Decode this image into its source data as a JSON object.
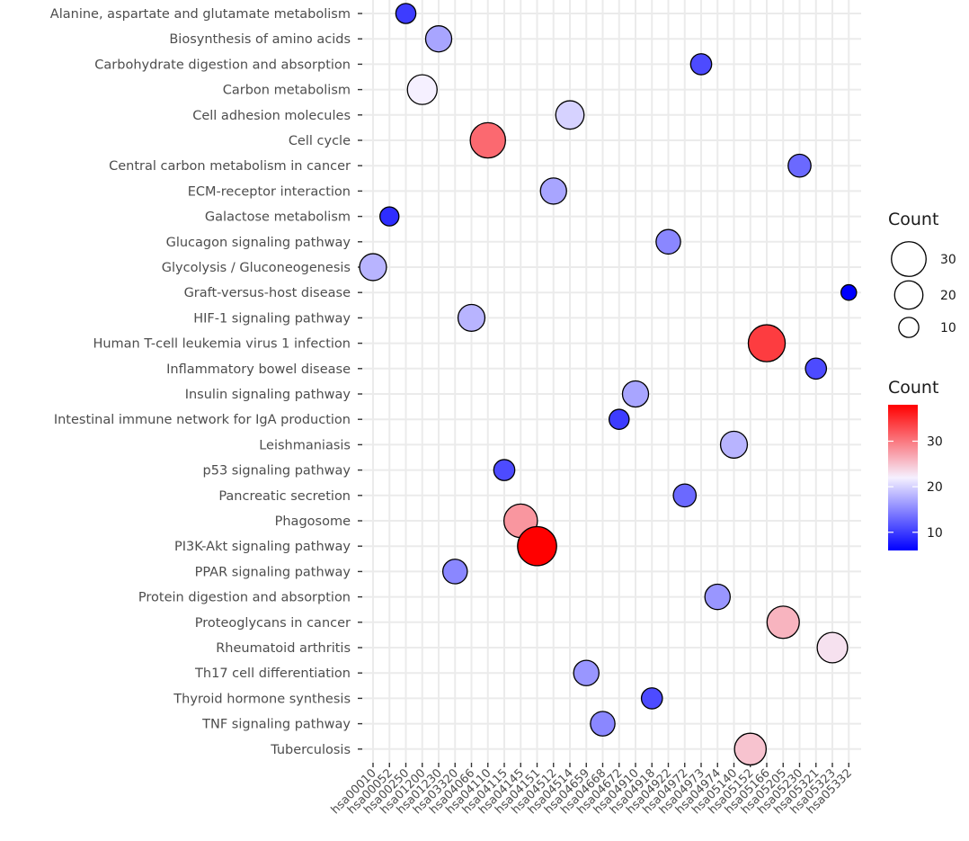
{
  "chart_data": {
    "type": "scatter",
    "description_free": true,
    "y_categories": [
      "Alanine, aspartate and glutamate metabolism",
      "Biosynthesis of amino acids",
      "Carbohydrate digestion and absorption",
      "Carbon metabolism",
      "Cell adhesion molecules",
      "Cell cycle",
      "Central carbon metabolism in cancer",
      "ECM-receptor interaction",
      "Galactose metabolism",
      "Glucagon signaling pathway",
      "Glycolysis / Gluconeogenesis",
      "Graft-versus-host disease",
      "HIF-1 signaling pathway",
      "Human T-cell leukemia virus 1 infection",
      "Inflammatory bowel disease",
      "Insulin signaling pathway",
      "Intestinal immune network for IgA production",
      "Leishmaniasis",
      "p53 signaling pathway",
      "Pancreatic secretion",
      "Phagosome",
      "PI3K-Akt signaling pathway",
      "PPAR signaling pathway",
      "Protein digestion and absorption",
      "Proteoglycans in cancer",
      "Rheumatoid arthritis",
      "Th17 cell differentiation",
      "Thyroid hormone synthesis",
      "TNF signaling pathway",
      "Tuberculosis"
    ],
    "x_categories": [
      "hsa00010",
      "hsa00052",
      "hsa00250",
      "hsa01200",
      "hsa01230",
      "hsa03320",
      "hsa04066",
      "hsa04110",
      "hsa04115",
      "hsa04145",
      "hsa04151",
      "hsa04512",
      "hsa04514",
      "hsa04659",
      "hsa04668",
      "hsa04672",
      "hsa04910",
      "hsa04918",
      "hsa04922",
      "hsa04972",
      "hsa04973",
      "hsa04974",
      "hsa05140",
      "hsa05152",
      "hsa05166",
      "hsa05205",
      "hsa05230",
      "hsa05321",
      "hsa05323",
      "hsa05332"
    ],
    "points": [
      {
        "y": "Alanine, aspartate and glutamate metabolism",
        "x": "hsa00250",
        "count": 10
      },
      {
        "y": "Biosynthesis of amino acids",
        "x": "hsa01230",
        "count": 17
      },
      {
        "y": "Carbohydrate digestion and absorption",
        "x": "hsa04973",
        "count": 11
      },
      {
        "y": "Carbon metabolism",
        "x": "hsa01200",
        "count": 22
      },
      {
        "y": "Cell adhesion molecules",
        "x": "hsa04514",
        "count": 20
      },
      {
        "y": "Cell cycle",
        "x": "hsa04110",
        "count": 31
      },
      {
        "y": "Central carbon metabolism in cancer",
        "x": "hsa05230",
        "count": 13
      },
      {
        "y": "ECM-receptor interaction",
        "x": "hsa04512",
        "count": 17
      },
      {
        "y": "Galactose metabolism",
        "x": "hsa00052",
        "count": 9
      },
      {
        "y": "Glucagon signaling pathway",
        "x": "hsa04922",
        "count": 15
      },
      {
        "y": "Glycolysis / Gluconeogenesis",
        "x": "hsa00010",
        "count": 18
      },
      {
        "y": "Graft-versus-host disease",
        "x": "hsa05332",
        "count": 6
      },
      {
        "y": "HIF-1 signaling pathway",
        "x": "hsa04066",
        "count": 18
      },
      {
        "y": "Human T-cell leukemia virus 1 infection",
        "x": "hsa05166",
        "count": 34
      },
      {
        "y": "Inflammatory bowel disease",
        "x": "hsa05321",
        "count": 11
      },
      {
        "y": "Insulin signaling pathway",
        "x": "hsa04910",
        "count": 17
      },
      {
        "y": "Intestinal immune network for IgA production",
        "x": "hsa04672",
        "count": 10
      },
      {
        "y": "Leishmaniasis",
        "x": "hsa05140",
        "count": 18
      },
      {
        "y": "p53 signaling pathway",
        "x": "hsa04115",
        "count": 11
      },
      {
        "y": "Pancreatic secretion",
        "x": "hsa04972",
        "count": 13
      },
      {
        "y": "Phagosome",
        "x": "hsa04145",
        "count": 28
      },
      {
        "y": "PI3K-Akt signaling pathway",
        "x": "hsa04151",
        "count": 38
      },
      {
        "y": "PPAR signaling pathway",
        "x": "hsa03320",
        "count": 15
      },
      {
        "y": "Protein digestion and absorption",
        "x": "hsa04974",
        "count": 16
      },
      {
        "y": "Proteoglycans in cancer",
        "x": "hsa05205",
        "count": 26
      },
      {
        "y": "Rheumatoid arthritis",
        "x": "hsa05323",
        "count": 23
      },
      {
        "y": "Th17 cell differentiation",
        "x": "hsa04659",
        "count": 16
      },
      {
        "y": "Thyroid hormone synthesis",
        "x": "hsa04918",
        "count": 11
      },
      {
        "y": "TNF signaling pathway",
        "x": "hsa04668",
        "count": 15
      },
      {
        "y": "Tuberculosis",
        "x": "hsa05152",
        "count": 25
      }
    ],
    "size_legend": {
      "title": "Count",
      "breaks": [
        30,
        20,
        10
      ]
    },
    "color_legend": {
      "title": "Count",
      "breaks": [
        10,
        20,
        30
      ],
      "range": [
        6,
        38
      ],
      "low_color": "#0000ff",
      "mid_color": "#f5f0ff",
      "high_color": "#ff0000"
    },
    "grid": true,
    "legend_position": "right"
  }
}
